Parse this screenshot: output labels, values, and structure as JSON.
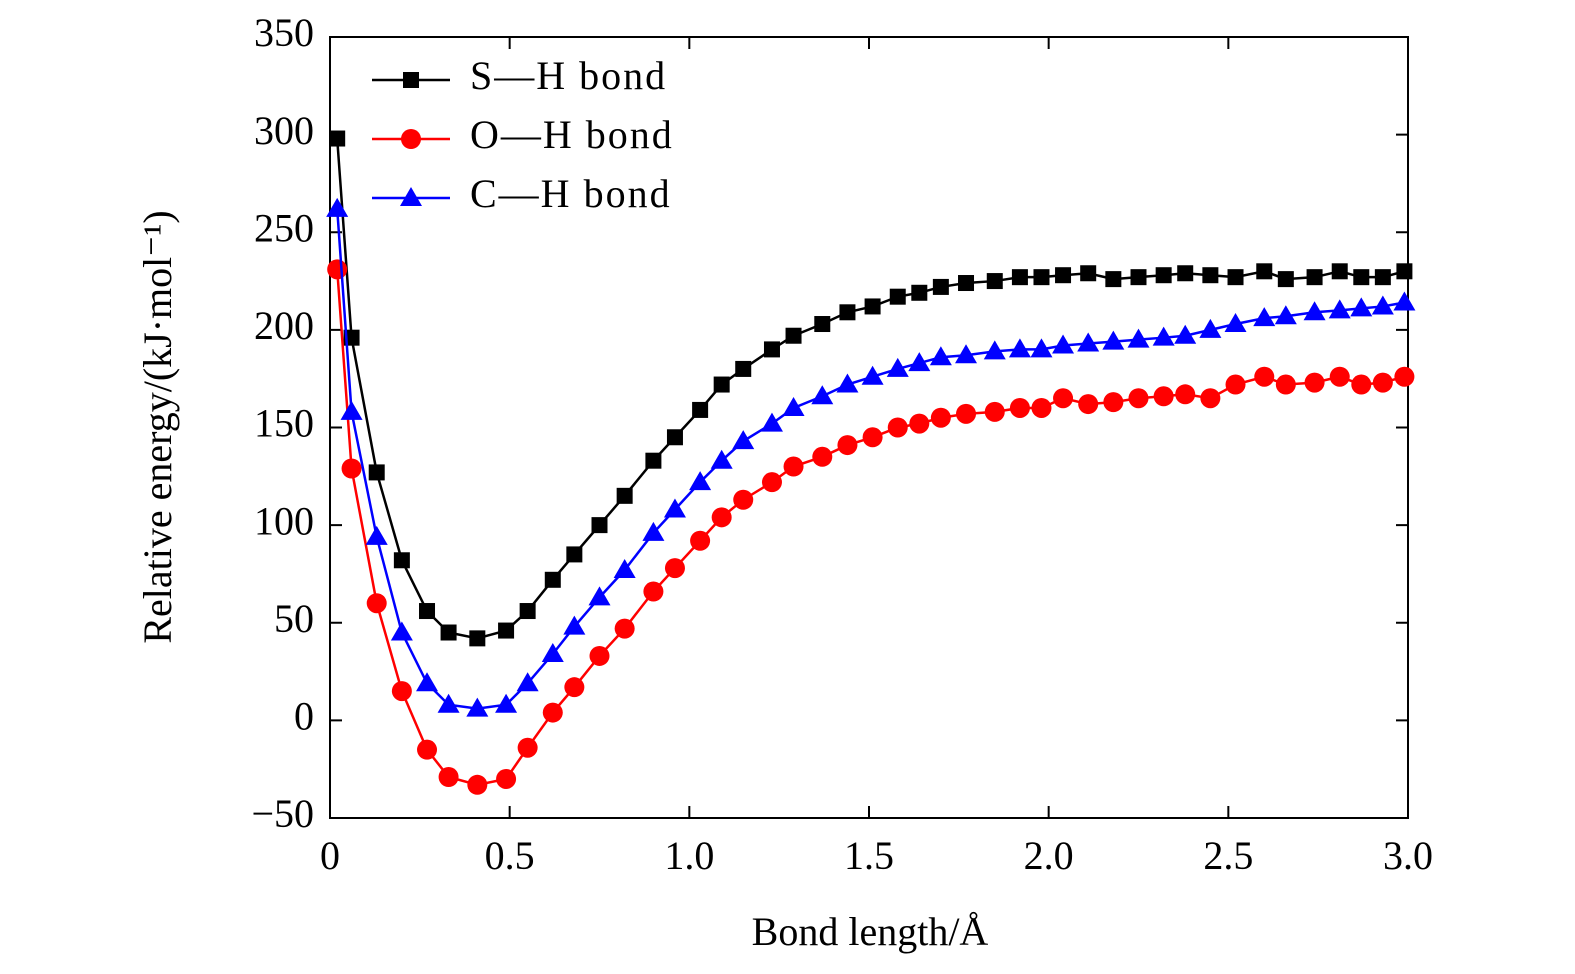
{
  "chart_data": {
    "type": "line",
    "x_label": "Bond length/Å",
    "y_label": "Relative energy/(kJ·mol⁻¹)",
    "xlim": [
      0,
      3.0
    ],
    "ylim": [
      -50,
      350
    ],
    "xticks": [
      0,
      0.5,
      {
        "value": 1.0,
        "label": "1.0"
      },
      1.5,
      {
        "value": 2.0,
        "label": "2.0"
      },
      2.5,
      {
        "value": 3.0,
        "label": "3.0"
      }
    ],
    "yticks": [
      {
        "value": -50,
        "label": "−50"
      },
      0,
      50,
      100,
      150,
      200,
      250,
      300,
      350
    ],
    "legend": "upper left",
    "x": [
      0.02,
      0.06,
      0.13,
      0.2,
      0.27,
      0.33,
      0.41,
      0.49,
      0.55,
      0.62,
      0.68,
      0.75,
      0.82,
      0.9,
      0.96,
      1.03,
      1.09,
      1.15,
      1.23,
      1.29,
      1.37,
      1.44,
      1.51,
      1.58,
      1.64,
      1.7,
      1.77,
      1.85,
      1.92,
      1.98,
      2.04,
      2.11,
      2.18,
      2.25,
      2.32,
      2.38,
      2.45,
      2.52,
      2.6,
      2.66,
      2.74,
      2.81,
      2.87,
      2.93,
      2.99
    ],
    "series": [
      {
        "name": "S—H bond",
        "color": "#000000",
        "marker": "square",
        "values": [
          298,
          196,
          127,
          82,
          56,
          45,
          42,
          46,
          56,
          72,
          85,
          100,
          115,
          133,
          145,
          159,
          172,
          180,
          190,
          197,
          203,
          209,
          212,
          217,
          219,
          222,
          224,
          225,
          227,
          227,
          228,
          229,
          226,
          227,
          228,
          229,
          228,
          227,
          230,
          226,
          227,
          230,
          227,
          227,
          230
        ]
      },
      {
        "name": "O—H bond",
        "color": "#ff0000",
        "marker": "circle",
        "values": [
          231,
          129,
          60,
          15,
          -15,
          -29,
          -33,
          -30,
          -14,
          4,
          17,
          33,
          47,
          66,
          78,
          92,
          104,
          113,
          122,
          130,
          135,
          141,
          145,
          150,
          152,
          155,
          157,
          158,
          160,
          160,
          165,
          162,
          163,
          165,
          166,
          167,
          165,
          172,
          176,
          172,
          173,
          176,
          172,
          173,
          176
        ]
      },
      {
        "name": "C—H bond",
        "color": "#0000ff",
        "marker": "triangle",
        "values": [
          262,
          158,
          94,
          45,
          19,
          8,
          6,
          8,
          19,
          34,
          48,
          63,
          77,
          96,
          108,
          122,
          133,
          143,
          152,
          160,
          166,
          172,
          176,
          180,
          183,
          186,
          187,
          189,
          190,
          190,
          192,
          193,
          194,
          195,
          196,
          197,
          200,
          203,
          206,
          207,
          209,
          210,
          211,
          212,
          214
        ]
      }
    ]
  }
}
